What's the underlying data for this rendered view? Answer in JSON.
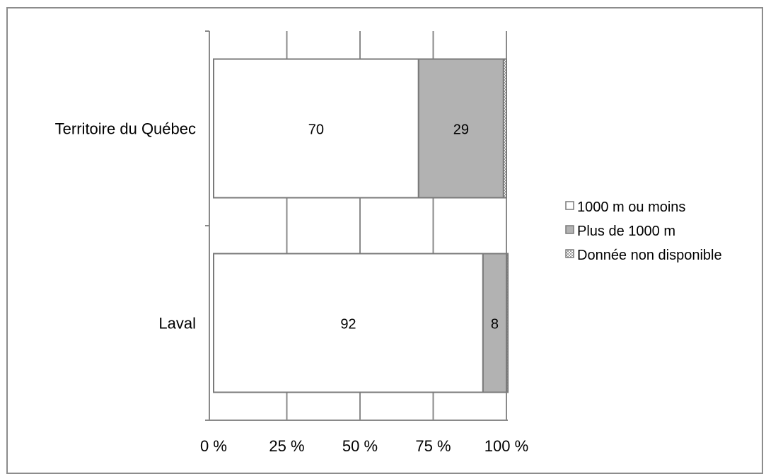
{
  "chart_data": {
    "type": "bar",
    "orientation": "horizontal",
    "stacked": true,
    "percent": true,
    "categories": [
      "Territoire du Québec",
      "Laval"
    ],
    "series": [
      {
        "name": "1000 m ou moins",
        "values": [
          70,
          92
        ],
        "labels": [
          "70",
          "92"
        ],
        "color": "#ffffff"
      },
      {
        "name": "Plus de 1000 m",
        "values": [
          29,
          8
        ],
        "labels": [
          "29",
          "8"
        ],
        "color": "#b2b2b2"
      },
      {
        "name": "Donnée non disponible",
        "values": [
          1,
          0.5
        ],
        "labels": [
          "",
          ""
        ],
        "color": "pattern-dots"
      }
    ],
    "x_ticks": [
      "0 %",
      "25 %",
      "50 %",
      "75 %",
      "100 %"
    ],
    "xlim": [
      0,
      100
    ],
    "grid": true,
    "legend_position": "right"
  }
}
